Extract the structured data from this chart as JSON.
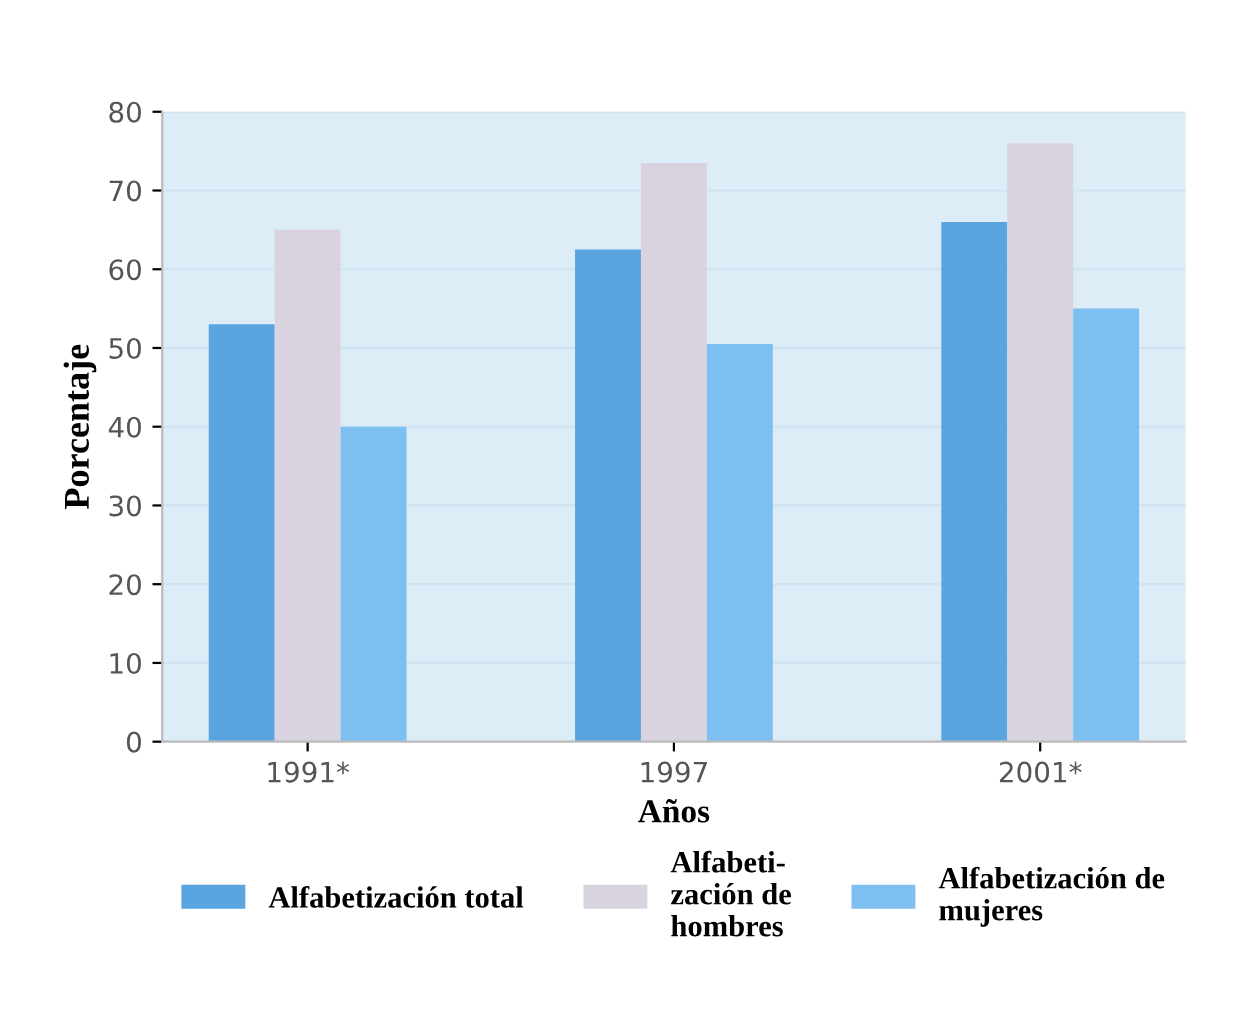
{
  "chart_data": {
    "type": "bar",
    "xlabel": "Años",
    "ylabel": "Porcentaje",
    "categories": [
      "1991*",
      "1997",
      "2001*"
    ],
    "series": [
      {
        "name": "Alfabetización total",
        "color": "#5aa5e0",
        "values": [
          53,
          62.5,
          66
        ]
      },
      {
        "name": "Alfabeti-\nzación de\nhombres",
        "color": "#d8d3df",
        "values": [
          65,
          73.5,
          76
        ]
      },
      {
        "name": "Alfabetización de\nmujeres",
        "color": "#7dbff0",
        "values": [
          40,
          50.5,
          55
        ]
      }
    ],
    "ylim": [
      0,
      80
    ],
    "yticks": [
      0,
      10,
      20,
      30,
      40,
      50,
      60,
      70,
      80
    ],
    "grid": "y",
    "legend": "bottom"
  }
}
